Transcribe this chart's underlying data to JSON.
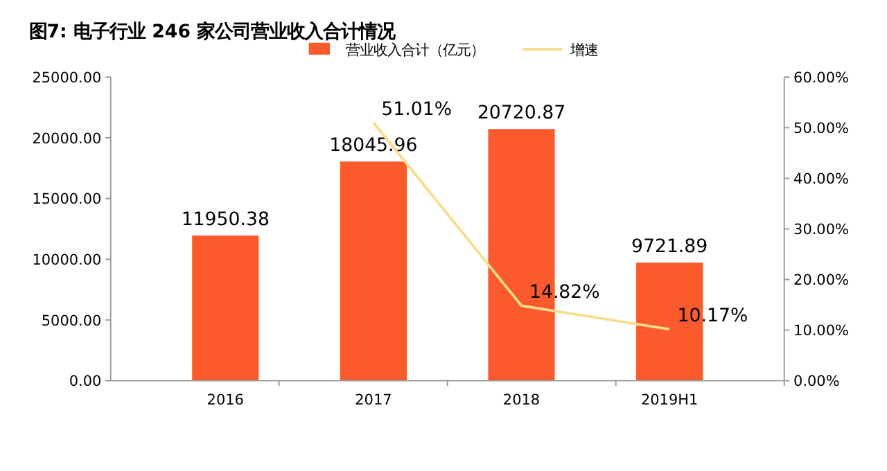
{
  "chart_data": {
    "type": "bar",
    "title": "图7: 电子行业 246 家公司营业收入合计情况",
    "categories": [
      "2016",
      "2017",
      "2018",
      "2019H1"
    ],
    "series": [
      {
        "name": "营业收入合计（亿元）",
        "color": "#fa5a2c",
        "values": [
          11950.38,
          18045.96,
          20720.87,
          9721.89
        ],
        "value_labels": [
          "11950.38",
          "18045.96",
          "20720.87",
          "9721.89"
        ]
      },
      {
        "name": "增速",
        "type": "line",
        "axis": "y2",
        "color": "#f8dc8c",
        "values": [
          null,
          51.01,
          14.82,
          10.17
        ],
        "value_labels": [
          null,
          "51.01%",
          "14.82%",
          "10.17%"
        ]
      }
    ],
    "ylim": [
      0,
      25000
    ],
    "yticks": [
      {
        "value": 0,
        "label": "0.00"
      },
      {
        "value": 5000,
        "label": "5000.00"
      },
      {
        "value": 10000,
        "label": "10000.00"
      },
      {
        "value": 15000,
        "label": "15000.00"
      },
      {
        "value": 20000,
        "label": "20000.00"
      },
      {
        "value": 25000,
        "label": "25000.00"
      }
    ],
    "y2lim": [
      0,
      60
    ],
    "y2ticks": [
      {
        "value": 0,
        "label": "0.00%"
      },
      {
        "value": 10,
        "label": "10.00%"
      },
      {
        "value": 20,
        "label": "20.00%"
      },
      {
        "value": 30,
        "label": "30.00%"
      },
      {
        "value": 40,
        "label": "40.00%"
      },
      {
        "value": 50,
        "label": "50.00%"
      },
      {
        "value": 60,
        "label": "60.00%"
      }
    ],
    "grid": false,
    "legend": "top"
  }
}
